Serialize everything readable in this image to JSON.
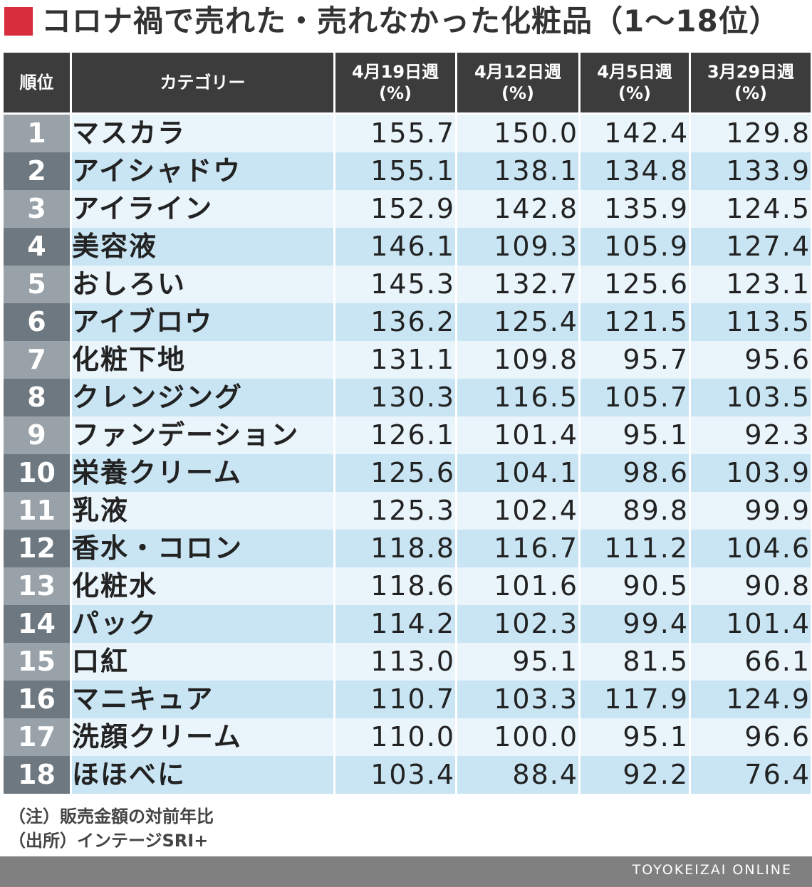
{
  "title": "コロナ禍で売れた・売れなかった化粧品（1〜18位）",
  "colors": {
    "accent": "#d72d3c",
    "header_bg": "#3c3c3c",
    "row_light": "#e9f4fb",
    "row_dark": "#c9e5f4",
    "footer_bg": "#808080"
  },
  "headers": {
    "rank": "順位",
    "category": "カテゴリー",
    "w1": [
      "4月19日週",
      "(%)"
    ],
    "w2": [
      "4月12日週",
      "(%)"
    ],
    "w3": [
      "4月5日週",
      "(%)"
    ],
    "w4": [
      "3月29日週",
      "(%)"
    ]
  },
  "chart_data": {
    "type": "table",
    "title": "コロナ禍で売れた・売れなかった化粧品（1〜18位）",
    "columns": [
      "順位",
      "カテゴリー",
      "4月19日週 (%)",
      "4月12日週 (%)",
      "4月5日週 (%)",
      "3月29日週 (%)"
    ],
    "rows": [
      [
        "1",
        "マスカラ",
        "155.7",
        "150.0",
        "142.4",
        "129.8"
      ],
      [
        "2",
        "アイシャドウ",
        "155.1",
        "138.1",
        "134.8",
        "133.9"
      ],
      [
        "3",
        "アイライン",
        "152.9",
        "142.8",
        "135.9",
        "124.5"
      ],
      [
        "4",
        "美容液",
        "146.1",
        "109.3",
        "105.9",
        "127.4"
      ],
      [
        "5",
        "おしろい",
        "145.3",
        "132.7",
        "125.6",
        "123.1"
      ],
      [
        "6",
        "アイブロウ",
        "136.2",
        "125.4",
        "121.5",
        "113.5"
      ],
      [
        "7",
        "化粧下地",
        "131.1",
        "109.8",
        "95.7",
        "95.6"
      ],
      [
        "8",
        "クレンジング",
        "130.3",
        "116.5",
        "105.7",
        "103.5"
      ],
      [
        "9",
        "ファンデーション",
        "126.1",
        "101.4",
        "95.1",
        "92.3"
      ],
      [
        "10",
        "栄養クリーム",
        "125.6",
        "104.1",
        "98.6",
        "103.9"
      ],
      [
        "11",
        "乳液",
        "125.3",
        "102.4",
        "89.8",
        "99.9"
      ],
      [
        "12",
        "香水・コロン",
        "118.8",
        "116.7",
        "111.2",
        "104.6"
      ],
      [
        "13",
        "化粧水",
        "118.6",
        "101.6",
        "90.5",
        "90.8"
      ],
      [
        "14",
        "パック",
        "114.2",
        "102.3",
        "99.4",
        "101.4"
      ],
      [
        "15",
        "口紅",
        "113.0",
        "95.1",
        "81.5",
        "66.1"
      ],
      [
        "16",
        "マニキュア",
        "110.7",
        "103.3",
        "117.9",
        "124.9"
      ],
      [
        "17",
        "洗顔クリーム",
        "110.0",
        "100.0",
        "95.1",
        "96.6"
      ],
      [
        "18",
        "ほほべに",
        "103.4",
        "88.4",
        "92.2",
        "76.4"
      ]
    ]
  },
  "notes": [
    "（注）販売金額の対前年比",
    "（出所）インテージSRI+"
  ],
  "footer": "TOYOKEIZAI ONLINE"
}
